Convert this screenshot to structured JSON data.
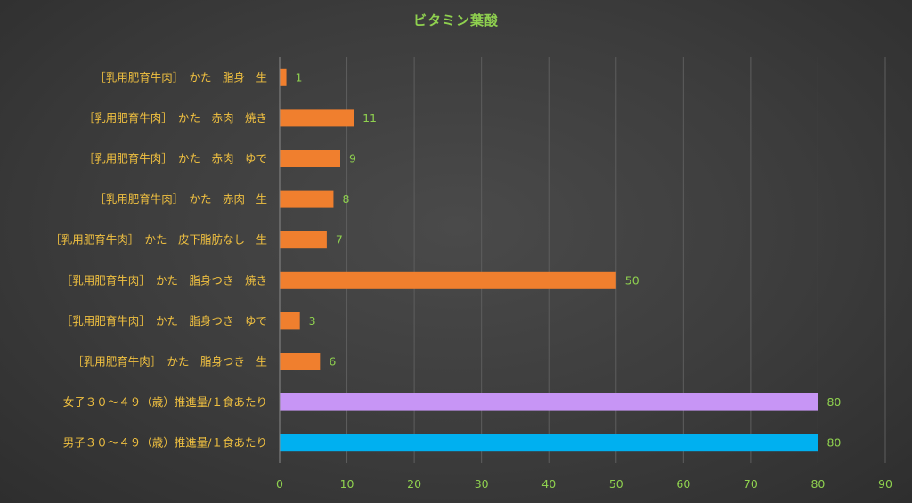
{
  "chart_data": {
    "type": "bar",
    "orientation": "horizontal",
    "title": "ビタミン葉酸",
    "xlabel": "",
    "ylabel": "",
    "xlim": [
      0,
      90
    ],
    "xticks": [
      0,
      10,
      20,
      30,
      40,
      50,
      60,
      70,
      80,
      90
    ],
    "grid": true,
    "categories": [
      "［乳用肥育牛肉］　かた　脂身　生",
      "［乳用肥育牛肉］　かた　赤肉　焼き",
      "［乳用肥育牛肉］　かた　赤肉　ゆで",
      "［乳用肥育牛肉］　かた　赤肉　生",
      "［乳用肥育牛肉］　かた　皮下脂肪なし　生",
      "［乳用肥育牛肉］　かた　脂身つき　焼き",
      "［乳用肥育牛肉］　かた　脂身つき　ゆで",
      "［乳用肥育牛肉］　かた　脂身つき　生",
      "女子３０～４９（歳）推進量/１食あたり",
      "男子３０～４９（歳）推進量/１食あたり"
    ],
    "values": [
      1,
      11,
      9,
      8,
      7,
      50,
      3,
      6,
      80,
      80
    ],
    "value_labels": [
      "1",
      "11",
      "9",
      "8",
      "7",
      "50",
      "3",
      "6",
      "80",
      "80"
    ],
    "colors": [
      "#f07f2e",
      "#f07f2e",
      "#f07f2e",
      "#f07f2e",
      "#f07f2e",
      "#f07f2e",
      "#f07f2e",
      "#f07f2e",
      "#c795f5",
      "#00b0f0"
    ]
  }
}
